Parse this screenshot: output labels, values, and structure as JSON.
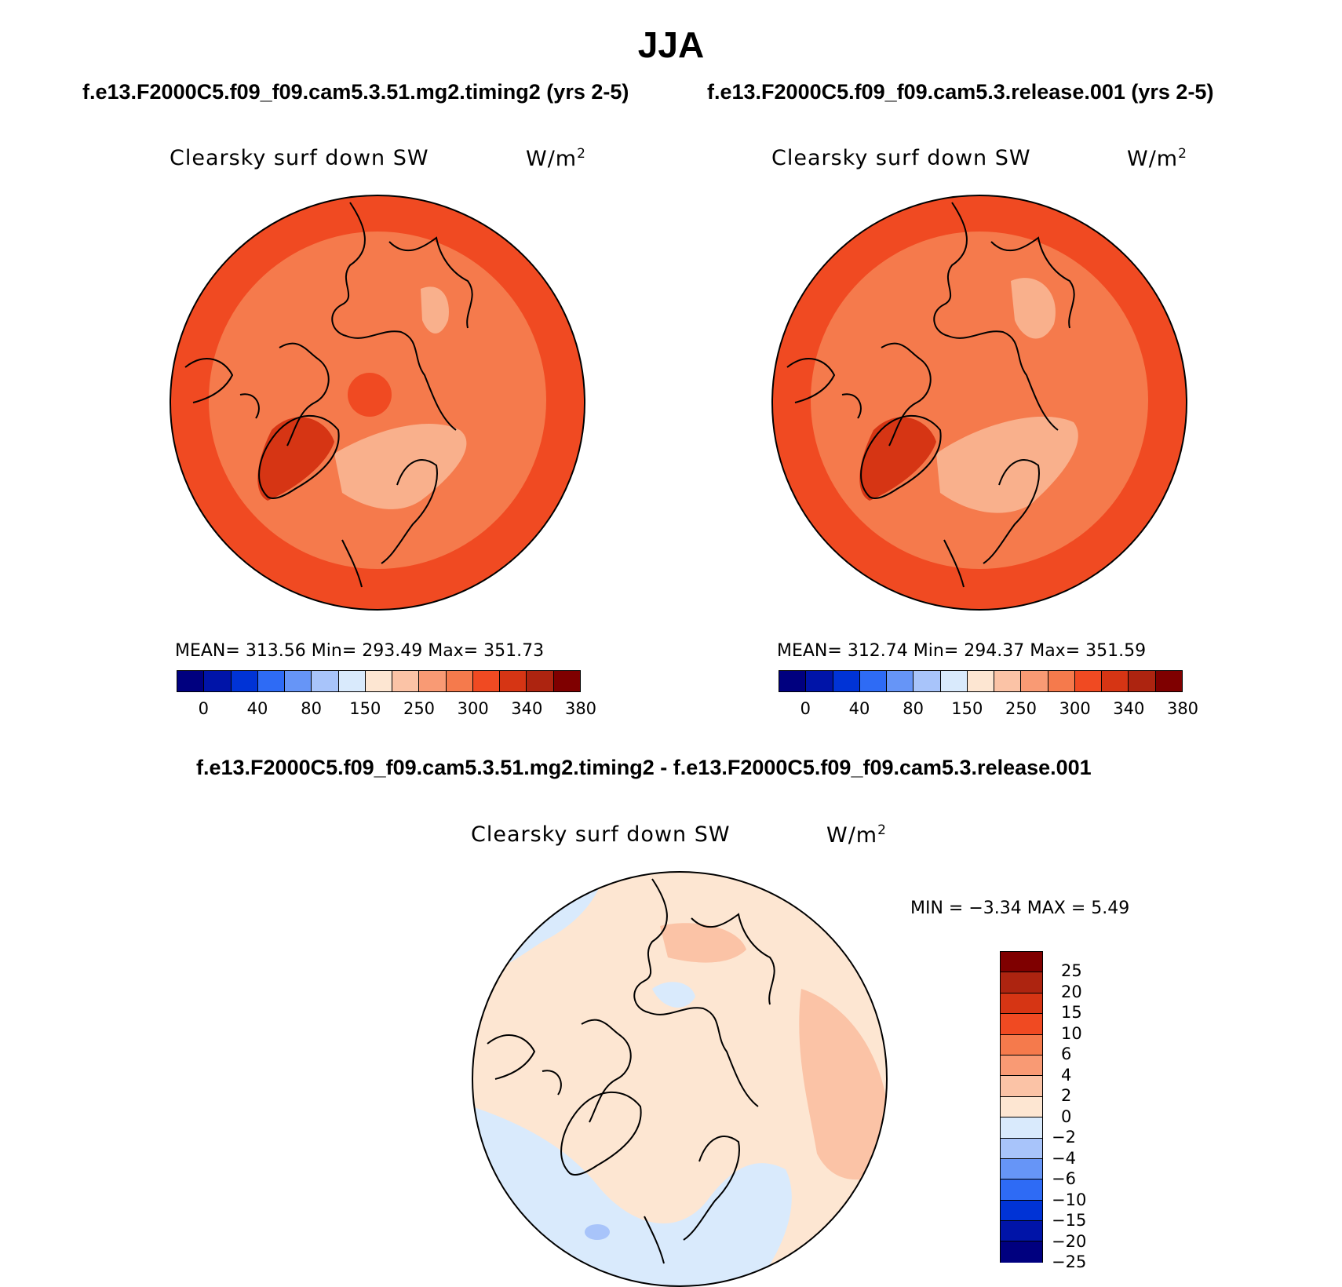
{
  "page": {
    "title": "JJA"
  },
  "panel_left": {
    "case_title": "f.e13.F2000C5.f09_f09.cam5.3.51.mg2.timing2 (yrs 2-5)",
    "variable": "Clearsky surf down SW",
    "units_base": "W/m",
    "units_exp": "2",
    "stats": "MEAN= 313.56   Min= 293.49   Max= 351.73",
    "background_color": "#f45f2b",
    "region_colors": {
      "ring": "#f04a22",
      "interior": "#f57a4c",
      "light": "#f9b08c",
      "greenland": "#d63514"
    }
  },
  "panel_right": {
    "case_title": "f.e13.F2000C5.f09_f09.cam5.3.release.001 (yrs 2-5)",
    "variable": "Clearsky surf down SW",
    "units_base": "W/m",
    "units_exp": "2",
    "stats": "MEAN= 312.74   Min= 294.37   Max= 351.59",
    "background_color": "#f45f2b",
    "region_colors": {
      "ring": "#f04a22",
      "interior": "#f57a4c",
      "light": "#f9b08c",
      "greenland": "#d63514"
    }
  },
  "abs_colorbar": {
    "labels": [
      "0",
      "40",
      "80",
      "150",
      "250",
      "300",
      "340",
      "380"
    ],
    "colors": [
      "#00007f",
      "#0014a8",
      "#0033d6",
      "#2e6bf5",
      "#6695f7",
      "#a8c4fa",
      "#d9eafc",
      "#fde6d2",
      "#fbc3a6",
      "#f99a74",
      "#f57a4c",
      "#f04a22",
      "#d63514",
      "#ad2410",
      "#7f0000"
    ]
  },
  "panel_diff": {
    "case_title": "f.e13.F2000C5.f09_f09.cam5.3.51.mg2.timing2 - f.e13.F2000C5.f09_f09.cam5.3.release.001",
    "variable": "Clearsky surf down SW",
    "units_base": "W/m",
    "units_exp": "2",
    "minmax": "MIN =   −3.34 MAX =    5.49",
    "region_colors": {
      "pos": "#fde6d2",
      "neg": "#d9eafc",
      "pos2": "#fbc3a6",
      "neg2": "#a8c4fa"
    }
  },
  "diff_colorbar": {
    "labels": [
      "25",
      "20",
      "15",
      "10",
      "6",
      "4",
      "2",
      "0",
      "−2",
      "−4",
      "−6",
      "−10",
      "−15",
      "−20",
      "−25"
    ],
    "colors": [
      "#7f0000",
      "#ad2410",
      "#d63514",
      "#f04a22",
      "#f57a4c",
      "#f99a74",
      "#fbc3a6",
      "#fde6d2",
      "#d9eafc",
      "#a8c4fa",
      "#6695f7",
      "#2e6bf5",
      "#0033d6",
      "#0014a8",
      "#00007f"
    ]
  }
}
